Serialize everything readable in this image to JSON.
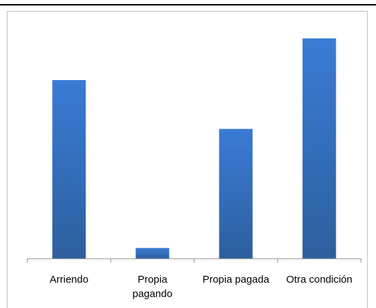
{
  "chart_data": {
    "type": "bar",
    "categories": [
      "Arriendo",
      "Propia\npagando",
      "Propia pagada",
      "Otra condición"
    ],
    "values": [
      75,
      4.5,
      54.5,
      92.5
    ],
    "ylim": [
      0,
      100
    ],
    "bar_color": "#3a74c4",
    "title": "",
    "xlabel": "",
    "ylabel": "",
    "grid": false,
    "legend": "none"
  }
}
